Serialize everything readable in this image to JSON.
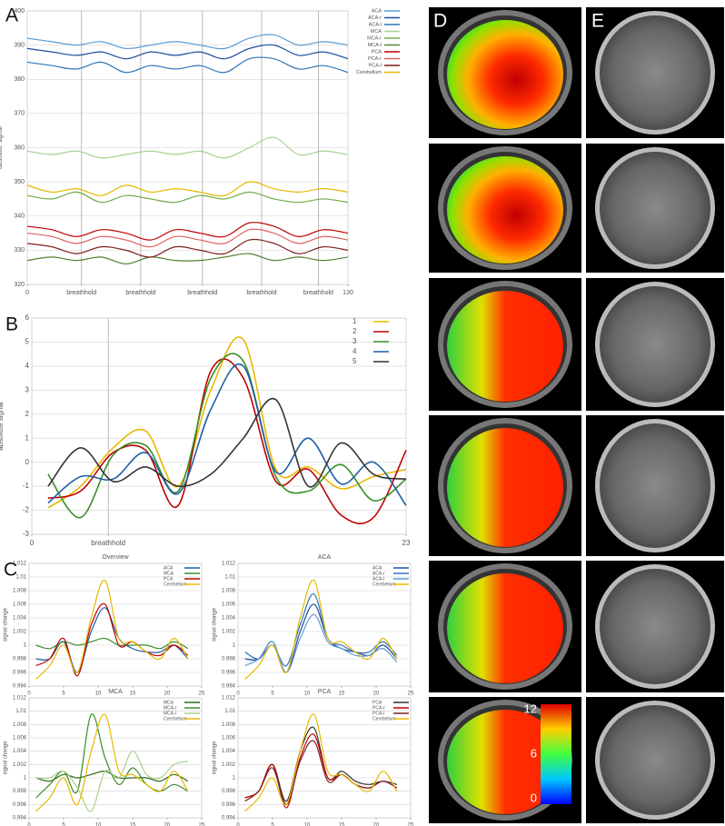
{
  "panel_labels": [
    "A",
    "B",
    "C",
    "D",
    "E"
  ],
  "colorbar": {
    "lim": [
      0,
      12
    ],
    "ticks": [
      0,
      6,
      12
    ]
  },
  "chart_data": [
    {
      "type": "line",
      "ylabel": "absolute signal",
      "x": [
        0,
        10,
        20,
        30,
        40,
        50,
        60,
        70,
        80,
        90,
        100,
        110,
        120,
        130
      ],
      "xlim": [
        0,
        130
      ],
      "ylim": [
        320,
        400
      ],
      "xticks": [
        0,
        {
          "value": 22,
          "label": "breathhold"
        },
        {
          "value": 46,
          "label": "breathhold"
        },
        {
          "value": 71,
          "label": "breathhold"
        },
        {
          "value": 95,
          "label": "breathhold"
        },
        {
          "value": 118,
          "label": "breathhold"
        },
        130
      ],
      "yticks": [
        320,
        330,
        340,
        350,
        360,
        370,
        380,
        390,
        400
      ],
      "grid": true,
      "legend": "outside-right",
      "series": [
        {
          "name": "ACA",
          "color": "#5b9bd5",
          "values": [
            392,
            391,
            390,
            391,
            389,
            390,
            391,
            390,
            389,
            392,
            393,
            390,
            391,
            390
          ]
        },
        {
          "name": "ACA-r",
          "color": "#1f4e9c",
          "values": [
            389,
            388,
            387,
            388,
            386,
            388,
            387,
            388,
            386,
            389,
            390,
            387,
            388,
            386
          ]
        },
        {
          "name": "ACA-l",
          "color": "#2e75b6",
          "values": [
            385,
            384,
            383,
            385,
            382,
            384,
            383,
            384,
            382,
            386,
            386,
            383,
            384,
            382
          ]
        },
        {
          "name": "MCA",
          "color": "#a9d18e",
          "values": [
            359,
            358,
            359,
            357,
            358,
            359,
            358,
            359,
            357,
            360,
            363,
            358,
            359,
            358
          ]
        },
        {
          "name": "MCA-r",
          "color": "#70ad47",
          "values": [
            346,
            345,
            347,
            344,
            346,
            345,
            344,
            346,
            345,
            347,
            345,
            344,
            345,
            344
          ]
        },
        {
          "name": "MCA-l",
          "color": "#548235",
          "values": [
            327,
            328,
            327,
            328,
            326,
            328,
            327,
            327,
            328,
            329,
            327,
            328,
            327,
            328
          ]
        },
        {
          "name": "PCA",
          "color": "#c00000",
          "values": [
            337,
            336,
            334,
            336,
            335,
            333,
            336,
            335,
            334,
            338,
            337,
            334,
            336,
            335
          ]
        },
        {
          "name": "PCA-r",
          "color": "#e06060",
          "values": [
            335,
            334,
            332,
            334,
            333,
            331,
            334,
            333,
            332,
            336,
            335,
            332,
            334,
            333
          ]
        },
        {
          "name": "PCA-l",
          "color": "#7f1f1f",
          "values": [
            332,
            331,
            329,
            331,
            330,
            328,
            331,
            330,
            329,
            333,
            332,
            329,
            331,
            330
          ]
        },
        {
          "name": "Cerebellum",
          "color": "#e6b800",
          "values": [
            349,
            347,
            348,
            346,
            349,
            347,
            348,
            347,
            346,
            350,
            348,
            347,
            348,
            347
          ]
        }
      ]
    },
    {
      "type": "line",
      "ylabel": "absolute signal",
      "x": [
        1,
        3,
        5,
        7,
        9,
        11,
        13,
        15,
        17,
        19,
        21,
        23
      ],
      "xlim": [
        0,
        23
      ],
      "ylim": [
        -3,
        6
      ],
      "xticks": [
        0,
        {
          "value": 4.7,
          "label": "breathhold"
        },
        23
      ],
      "yticks": [
        -3,
        -2,
        -1,
        0,
        1,
        2,
        3,
        4,
        5,
        6
      ],
      "grid": true,
      "legend": "upper-right",
      "series": [
        {
          "name": "1",
          "color": "#e8b800",
          "values": [
            -1.9,
            -1.0,
            0.6,
            1.3,
            -1.0,
            3.0,
            5.1,
            -0.3,
            -0.2,
            -1.1,
            -0.6,
            -0.3
          ]
        },
        {
          "name": "2",
          "color": "#c00000",
          "values": [
            -1.5,
            -1.2,
            0.4,
            0.5,
            -1.8,
            3.8,
            3.5,
            -0.8,
            -0.3,
            -2.2,
            -2.3,
            0.5
          ]
        },
        {
          "name": "3",
          "color": "#3a8f2a",
          "values": [
            -0.5,
            -2.3,
            0.3,
            0.7,
            -1.2,
            3.5,
            4.2,
            -0.6,
            -1.2,
            -0.1,
            -1.6,
            -0.7
          ]
        },
        {
          "name": "4",
          "color": "#1f5fa8",
          "values": [
            -1.7,
            -0.6,
            -0.7,
            0.4,
            -1.3,
            2.2,
            4.0,
            -0.4,
            1.0,
            -0.9,
            0.0,
            -1.8
          ]
        },
        {
          "name": "5",
          "color": "#333333",
          "values": [
            -1.0,
            0.6,
            -0.8,
            -0.2,
            -1.0,
            -0.5,
            1.0,
            2.6,
            -1.0,
            0.8,
            -0.5,
            -0.7
          ]
        }
      ]
    },
    {
      "type": "line",
      "title": "Overview",
      "ylabel": "signal change",
      "x": [
        1,
        3,
        5,
        7,
        9,
        11,
        13,
        15,
        17,
        19,
        21,
        23
      ],
      "xlim": [
        0,
        25
      ],
      "ylim": [
        0.994,
        1.012
      ],
      "xticks": [
        0,
        5,
        10,
        15,
        20,
        25
      ],
      "yticks": [
        0.994,
        0.996,
        0.998,
        1,
        1.002,
        1.004,
        1.006,
        1.008,
        1.01,
        1.012
      ],
      "grid": true,
      "legend": "upper-right",
      "series": [
        {
          "name": "ACA",
          "color": "#1f5fa8",
          "values": [
            0.998,
            0.998,
            1.0005,
            0.996,
            1.002,
            1.0055,
            1.001,
            0.9995,
            0.999,
            0.999,
            1.0,
            0.998
          ]
        },
        {
          "name": "MCA",
          "color": "#3a8f2a",
          "values": [
            1.0,
            0.9995,
            1.0005,
            1.0,
            1.0005,
            1.001,
            1.0,
            1.0,
            1.0,
            0.9995,
            1.0005,
            0.9995
          ]
        },
        {
          "name": "PCA",
          "color": "#c00000",
          "values": [
            0.997,
            0.998,
            1.001,
            0.9955,
            1.003,
            1.006,
            1.0,
            1.0005,
            0.999,
            0.9985,
            1.0,
            0.9985
          ]
        },
        {
          "name": "Cerebellum",
          "color": "#e8b800",
          "values": [
            0.995,
            0.997,
            1.0,
            0.996,
            1.004,
            1.0095,
            1.001,
            1.0005,
            0.999,
            0.998,
            1.001,
            0.998
          ]
        }
      ]
    },
    {
      "type": "line",
      "title": "ACA",
      "ylabel": "signal change",
      "x": [
        1,
        3,
        5,
        7,
        9,
        11,
        13,
        15,
        17,
        19,
        21,
        23
      ],
      "xlim": [
        0,
        25
      ],
      "ylim": [
        0.994,
        1.012
      ],
      "xticks": [
        0,
        5,
        10,
        15,
        20,
        25
      ],
      "yticks": [
        0.994,
        0.996,
        0.998,
        1,
        1.002,
        1.004,
        1.006,
        1.008,
        1.01,
        1.012
      ],
      "grid": true,
      "legend": "upper-right",
      "series": [
        {
          "name": "ACA",
          "color": "#1f4e9c",
          "values": [
            0.998,
            0.998,
            1.0005,
            0.996,
            1.002,
            1.006,
            1.001,
            0.9995,
            0.999,
            0.9985,
            1.0,
            0.998
          ]
        },
        {
          "name": "ACA-r",
          "color": "#2e75b6",
          "values": [
            0.999,
            0.998,
            1.0,
            0.997,
            1.003,
            1.0075,
            1.001,
            1.0,
            0.999,
            0.999,
            1.0005,
            0.9985
          ]
        },
        {
          "name": "ACA-l",
          "color": "#5b9bd5",
          "values": [
            0.997,
            0.998,
            1.0005,
            0.996,
            1.001,
            1.0045,
            1.0005,
            0.9995,
            0.9985,
            0.9985,
            0.9995,
            0.9975
          ]
        },
        {
          "name": "Cerebellum",
          "color": "#e8b800",
          "values": [
            0.995,
            0.997,
            1.0,
            0.996,
            1.004,
            1.0095,
            1.001,
            1.0005,
            0.999,
            0.998,
            1.001,
            0.998
          ]
        }
      ]
    },
    {
      "type": "line",
      "title": "MCA",
      "ylabel": "signal change",
      "x": [
        1,
        3,
        5,
        7,
        9,
        11,
        13,
        15,
        17,
        19,
        21,
        23
      ],
      "xlim": [
        0,
        25
      ],
      "ylim": [
        0.994,
        1.012
      ],
      "xticks": [
        0,
        5,
        10,
        15,
        20,
        25
      ],
      "yticks": [
        0.994,
        0.996,
        0.998,
        1,
        1.002,
        1.004,
        1.006,
        1.008,
        1.01,
        1.012
      ],
      "grid": true,
      "legend": "upper-right",
      "series": [
        {
          "name": "MCA",
          "color": "#2d6a1e",
          "values": [
            1.0,
            0.9995,
            1.0005,
            1.0,
            1.0005,
            1.001,
            1.0,
            1.0,
            1.0,
            0.9995,
            1.0005,
            0.9995
          ]
        },
        {
          "name": "MCA-r",
          "color": "#3a8f2a",
          "values": [
            0.997,
            0.999,
            1.001,
            0.998,
            1.0095,
            1.003,
            0.999,
            1.0015,
            0.999,
            0.998,
            0.999,
            0.998
          ]
        },
        {
          "name": "MCA-l",
          "color": "#a9d18e",
          "values": [
            1.0,
            1.0,
            1.001,
            0.9985,
            0.995,
            1.001,
            1.0,
            1.004,
            1.0005,
            1.0,
            1.002,
            1.0025
          ]
        },
        {
          "name": "Cerebellum",
          "color": "#e8b800",
          "values": [
            0.995,
            0.997,
            1.0,
            0.996,
            1.004,
            1.0095,
            1.001,
            1.0005,
            0.999,
            0.998,
            1.001,
            0.998
          ]
        }
      ]
    },
    {
      "type": "line",
      "title": "PCA",
      "ylabel": "signal change",
      "x": [
        1,
        3,
        5,
        7,
        9,
        11,
        13,
        15,
        17,
        19,
        21,
        23
      ],
      "xlim": [
        0,
        25
      ],
      "ylim": [
        0.994,
        1.012
      ],
      "xticks": [
        0,
        5,
        10,
        15,
        20,
        25
      ],
      "yticks": [
        0.994,
        0.996,
        0.998,
        1,
        1.002,
        1.004,
        1.006,
        1.008,
        1.01,
        1.012
      ],
      "grid": true,
      "legend": "upper-right",
      "series": [
        {
          "name": "PCA",
          "color": "#333333",
          "values": [
            0.997,
            0.998,
            1.002,
            0.9965,
            1.004,
            1.0075,
            1.0,
            1.001,
            0.9995,
            0.999,
            0.9995,
            0.999
          ]
        },
        {
          "name": "PCA-r",
          "color": "#c00000",
          "values": [
            0.997,
            0.998,
            1.002,
            0.9955,
            1.003,
            1.0065,
            1.0,
            1.0005,
            0.999,
            0.9985,
            0.9995,
            0.9985
          ]
        },
        {
          "name": "PCA-l",
          "color": "#7f1f1f",
          "values": [
            0.9965,
            0.998,
            1.0015,
            0.996,
            1.0025,
            1.0055,
            0.9995,
            1.0005,
            0.999,
            0.9985,
            0.9995,
            0.9985
          ]
        },
        {
          "name": "Cerebellum",
          "color": "#e8b800",
          "values": [
            0.995,
            0.997,
            1.0,
            0.996,
            1.004,
            1.0095,
            1.001,
            1.0005,
            0.999,
            0.998,
            1.001,
            0.998
          ]
        }
      ]
    }
  ]
}
